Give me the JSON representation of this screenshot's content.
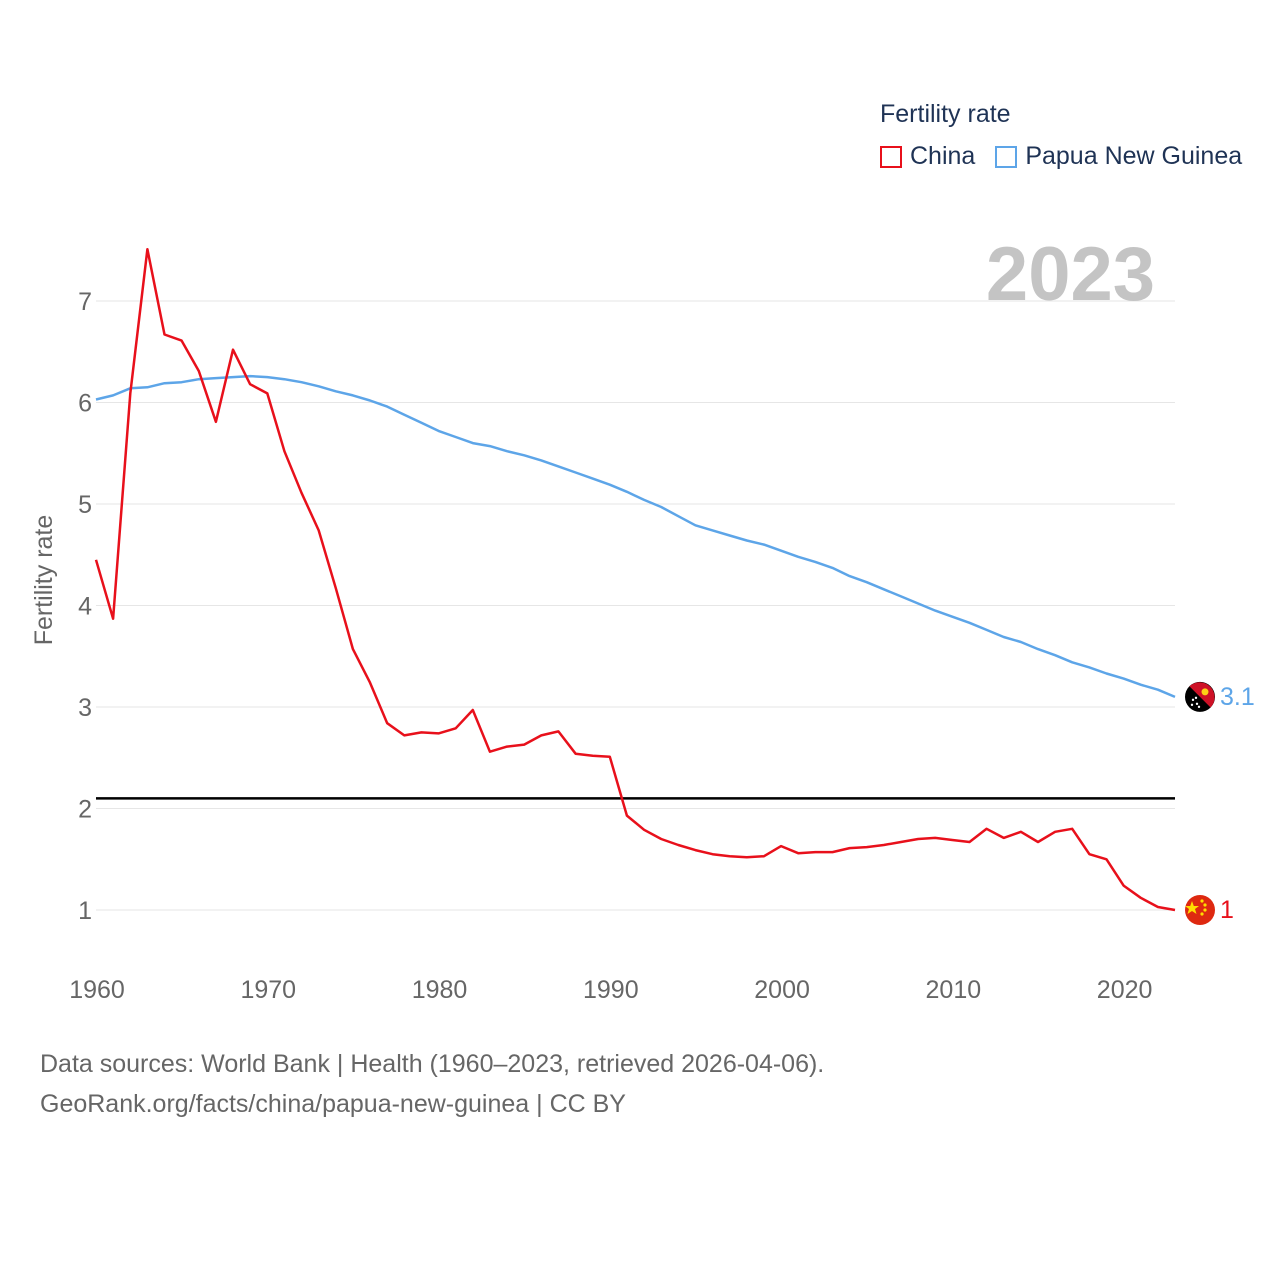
{
  "chart_data": {
    "type": "line",
    "title": "Fertility rate",
    "ylabel": "Fertility rate",
    "xlabel": "",
    "year_label": "2023",
    "xlim": [
      1960,
      2023
    ],
    "ylim": [
      0.5,
      7.8
    ],
    "x_ticks": [
      1960,
      1970,
      1980,
      1990,
      2000,
      2010,
      2020
    ],
    "y_ticks": [
      1,
      2,
      3,
      4,
      5,
      6,
      7
    ],
    "reference_line": 2.1,
    "x": [
      1960,
      1961,
      1962,
      1963,
      1964,
      1965,
      1966,
      1967,
      1968,
      1969,
      1970,
      1971,
      1972,
      1973,
      1974,
      1975,
      1976,
      1977,
      1978,
      1979,
      1980,
      1981,
      1982,
      1983,
      1984,
      1985,
      1986,
      1987,
      1988,
      1989,
      1990,
      1991,
      1992,
      1993,
      1994,
      1995,
      1996,
      1997,
      1998,
      1999,
      2000,
      2001,
      2002,
      2003,
      2004,
      2005,
      2006,
      2007,
      2008,
      2009,
      2010,
      2011,
      2012,
      2013,
      2014,
      2015,
      2016,
      2017,
      2018,
      2019,
      2020,
      2021,
      2022,
      2023
    ],
    "series": [
      {
        "name": "China",
        "color": "#e8101b",
        "end_label": "1",
        "values": [
          4.45,
          3.87,
          6.09,
          7.51,
          6.67,
          6.61,
          6.31,
          5.81,
          6.52,
          6.18,
          6.09,
          5.52,
          5.11,
          4.74,
          4.17,
          3.57,
          3.24,
          2.84,
          2.72,
          2.75,
          2.74,
          2.79,
          2.97,
          2.56,
          2.61,
          2.63,
          2.72,
          2.76,
          2.54,
          2.52,
          2.51,
          1.93,
          1.79,
          1.7,
          1.64,
          1.59,
          1.55,
          1.53,
          1.52,
          1.53,
          1.63,
          1.56,
          1.57,
          1.57,
          1.61,
          1.62,
          1.64,
          1.67,
          1.7,
          1.71,
          1.69,
          1.67,
          1.8,
          1.71,
          1.77,
          1.67,
          1.77,
          1.8,
          1.55,
          1.5,
          1.24,
          1.12,
          1.03,
          1.0
        ]
      },
      {
        "name": "Papua New Guinea",
        "color": "#5da5e8",
        "end_label": "3.1",
        "values": [
          6.03,
          6.07,
          6.14,
          6.15,
          6.19,
          6.2,
          6.23,
          6.24,
          6.25,
          6.26,
          6.25,
          6.23,
          6.2,
          6.16,
          6.11,
          6.07,
          6.02,
          5.96,
          5.88,
          5.8,
          5.72,
          5.66,
          5.6,
          5.57,
          5.52,
          5.48,
          5.43,
          5.37,
          5.31,
          5.25,
          5.19,
          5.12,
          5.04,
          4.97,
          4.88,
          4.79,
          4.74,
          4.69,
          4.64,
          4.6,
          4.54,
          4.48,
          4.43,
          4.37,
          4.29,
          4.23,
          4.16,
          4.09,
          4.02,
          3.95,
          3.89,
          3.83,
          3.76,
          3.69,
          3.64,
          3.57,
          3.51,
          3.44,
          3.39,
          3.33,
          3.28,
          3.22,
          3.17,
          3.1
        ]
      }
    ]
  },
  "legend": {
    "title": "Fertility rate",
    "items": [
      "China",
      "Papua New Guinea"
    ]
  },
  "footer": {
    "line1": "Data sources: World Bank | Health (1960–2023, retrieved 2026-04-06).",
    "line2": "GeoRank.org/facts/china/papua-new-guinea | CC BY"
  },
  "colors": {
    "china": "#e8101b",
    "png": "#5da5e8",
    "grid": "#e6e6e6",
    "axis_text": "#666666",
    "year_text": "#c4c4c4"
  },
  "icons": {
    "china": "china-flag-icon",
    "png": "papua-new-guinea-flag-icon"
  }
}
